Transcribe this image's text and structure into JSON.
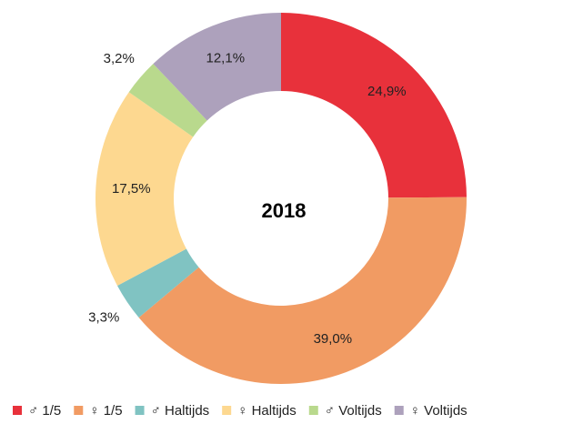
{
  "chart_data": {
    "type": "donut",
    "center_text": "2018",
    "categories": [
      "♂ 1/5",
      "♀ 1/5",
      "♂ Haltijds",
      "♀ Haltijds",
      "♂ Voltijds",
      "♀ Voltijds"
    ],
    "values": [
      24.9,
      39.0,
      3.3,
      17.5,
      3.2,
      12.1
    ],
    "value_labels": [
      "24,9%",
      "39,0%",
      "3,3%",
      "17,5%",
      "3,2%",
      "12,1%"
    ],
    "colors": [
      "#e8313b",
      "#f19b63",
      "#80c3c2",
      "#fdd890",
      "#b9d98d",
      "#ada1bc"
    ],
    "legend": "bottom"
  }
}
